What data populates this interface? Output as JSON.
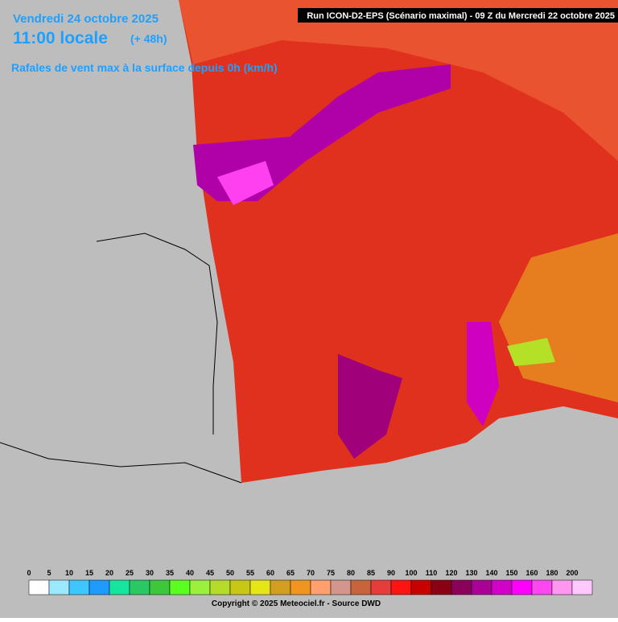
{
  "header": {
    "date": "Vendredi 24 octobre 2025",
    "time": "11:00 locale",
    "lead": "(+ 48h)",
    "parameter": "Rafales de vent max à la surface depuis 0h (km/h)",
    "run": "Run ICON-D2-EPS (Scénario maximal) - 09 Z du Mercredi 22 octobre 2025"
  },
  "legend": {
    "items": [
      {
        "label": 0,
        "color": "#ffffff"
      },
      {
        "label": 5,
        "color": "#9be8ff"
      },
      {
        "label": 10,
        "color": "#3cc8ff"
      },
      {
        "label": 15,
        "color": "#1e9bff"
      },
      {
        "label": 20,
        "color": "#14e6a0"
      },
      {
        "label": 25,
        "color": "#28c864"
      },
      {
        "label": 30,
        "color": "#3cc83c"
      },
      {
        "label": 35,
        "color": "#5aff1e"
      },
      {
        "label": 40,
        "color": "#9bf03c"
      },
      {
        "label": 45,
        "color": "#b4dc28"
      },
      {
        "label": 50,
        "color": "#c8c814"
      },
      {
        "label": 55,
        "color": "#e6e614"
      },
      {
        "label": 60,
        "color": "#d2a01e"
      },
      {
        "label": 65,
        "color": "#f0961e"
      },
      {
        "label": 70,
        "color": "#ffa06e"
      },
      {
        "label": 75,
        "color": "#d2968c"
      },
      {
        "label": 80,
        "color": "#c8643c"
      },
      {
        "label": 85,
        "color": "#e63c3c"
      },
      {
        "label": 90,
        "color": "#ff1414"
      },
      {
        "label": 100,
        "color": "#c80000"
      },
      {
        "label": 110,
        "color": "#8c0014"
      },
      {
        "label": 120,
        "color": "#8c005a"
      },
      {
        "label": 130,
        "color": "#aa0096"
      },
      {
        "label": 140,
        "color": "#d200c8"
      },
      {
        "label": 150,
        "color": "#ff00ff"
      },
      {
        "label": 160,
        "color": "#ff46f0"
      },
      {
        "label": 180,
        "color": "#ff96f0"
      },
      {
        "label": 200,
        "color": "#ffc8ff"
      }
    ]
  },
  "footer": {
    "copyright": "Copyright © 2025 Meteociel.fr - Source DWD"
  }
}
